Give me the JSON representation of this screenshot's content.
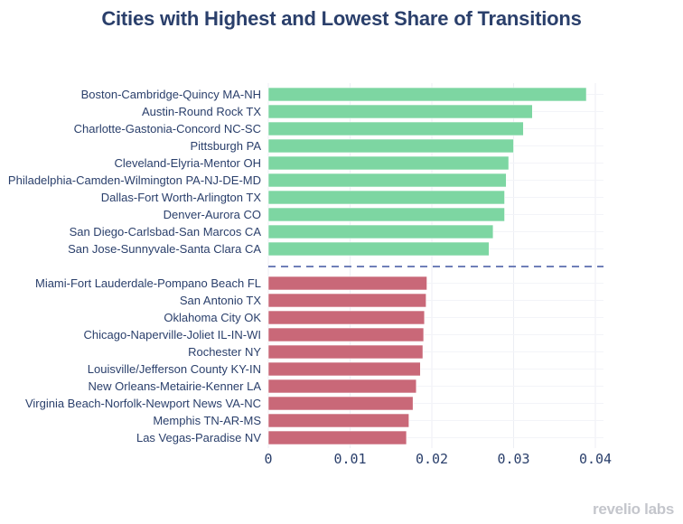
{
  "chart_data": {
    "type": "bar",
    "orientation": "horizontal",
    "title": "Cities with Highest and Lowest Share of Transitions",
    "xlabel": "",
    "ylabel": "",
    "xlim": [
      0,
      0.041
    ],
    "xticks": [
      0,
      0.01,
      0.02,
      0.03,
      0.04
    ],
    "xtick_labels": [
      "0",
      "0.01",
      "0.02",
      "0.03",
      "0.04"
    ],
    "grid": true,
    "separator": "dashed line between highest and lowest groups",
    "series": [
      {
        "name": "Highest",
        "color": "#7dd6a2",
        "categories": [
          "Boston-Cambridge-Quincy MA-NH",
          "Austin-Round Rock TX",
          "Charlotte-Gastonia-Concord NC-SC",
          "Pittsburgh PA",
          "Cleveland-Elyria-Mentor OH",
          "Philadelphia-Camden-Wilmington PA-NJ-DE-MD",
          "Dallas-Fort Worth-Arlington TX",
          "Denver-Aurora CO",
          "San Diego-Carlsbad-San Marcos CA",
          "San Jose-Sunnyvale-Santa Clara CA"
        ],
        "values": [
          0.0389,
          0.0323,
          0.0312,
          0.03,
          0.0294,
          0.0291,
          0.0289,
          0.0289,
          0.0275,
          0.027
        ]
      },
      {
        "name": "Lowest",
        "color": "#c96878",
        "categories": [
          "Miami-Fort Lauderdale-Pompano Beach FL",
          "San Antonio TX",
          "Oklahoma City OK",
          "Chicago-Naperville-Joliet IL-IN-WI",
          "Rochester NY",
          "Louisville/Jefferson County KY-IN",
          "New Orleans-Metairie-Kenner LA",
          "Virginia Beach-Norfolk-Newport News VA-NC",
          "Memphis TN-AR-MS",
          "Las Vegas-Paradise NV"
        ],
        "values": [
          0.0194,
          0.0193,
          0.0191,
          0.019,
          0.0189,
          0.0186,
          0.0181,
          0.0177,
          0.0172,
          0.0169
        ]
      }
    ],
    "colors": {
      "text": "#2a3f6b",
      "grid": "#eceef4",
      "separator": "#6f7fb8"
    }
  },
  "branding": {
    "logo_text": "revelio labs"
  }
}
